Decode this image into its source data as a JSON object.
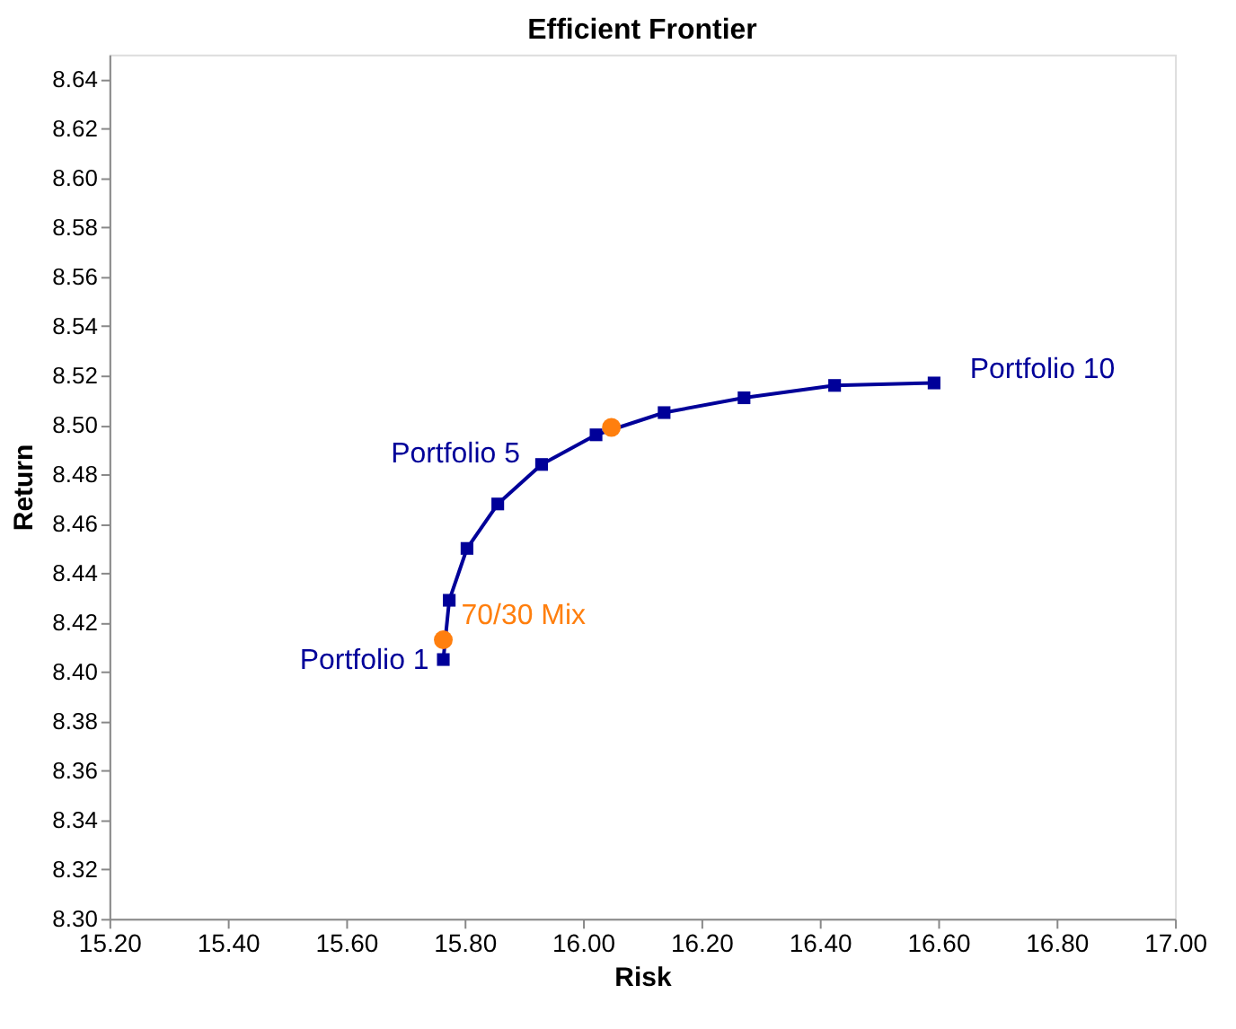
{
  "chart_data": {
    "type": "line",
    "title": "Efficient Frontier",
    "xlabel": "Risk",
    "ylabel": "Return",
    "xlim": [
      15.2,
      17.0
    ],
    "xticks": [
      {
        "value": 15.2,
        "label": "15.20"
      },
      {
        "value": 15.4,
        "label": "15.40"
      },
      {
        "value": 15.6,
        "label": "15.60"
      },
      {
        "value": 15.8,
        "label": "15.80"
      },
      {
        "value": 16.0,
        "label": "16.00"
      },
      {
        "value": 16.2,
        "label": "16.20"
      },
      {
        "value": 16.4,
        "label": "16.40"
      },
      {
        "value": 16.6,
        "label": "16.60"
      },
      {
        "value": 16.8,
        "label": "16.80"
      },
      {
        "value": 17.0,
        "label": "17.00"
      }
    ],
    "ylim": [
      8.3,
      8.65
    ],
    "yticks": [
      {
        "value": 8.3,
        "label": "8.30"
      },
      {
        "value": 8.32,
        "label": "8.32"
      },
      {
        "value": 8.34,
        "label": "8.34"
      },
      {
        "value": 8.36,
        "label": "8.36"
      },
      {
        "value": 8.38,
        "label": "8.38"
      },
      {
        "value": 8.4,
        "label": "8.40"
      },
      {
        "value": 8.42,
        "label": "8.42"
      },
      {
        "value": 8.44,
        "label": "8.44"
      },
      {
        "value": 8.46,
        "label": "8.46"
      },
      {
        "value": 8.48,
        "label": "8.48"
      },
      {
        "value": 8.5,
        "label": "8.50"
      },
      {
        "value": 8.52,
        "label": "8.52"
      },
      {
        "value": 8.54,
        "label": "8.54"
      },
      {
        "value": 8.56,
        "label": "8.56"
      },
      {
        "value": 8.58,
        "label": "8.58"
      },
      {
        "value": 8.6,
        "label": "8.60"
      },
      {
        "value": 8.62,
        "label": "8.62"
      },
      {
        "value": 8.64,
        "label": "8.64"
      }
    ],
    "grid": false,
    "legend": false,
    "series": [
      {
        "type": "line",
        "marker": "square",
        "line_style": "solid",
        "color": "#000099",
        "x": [
          15.764,
          15.774,
          15.804,
          15.856,
          15.93,
          16.022,
          16.137,
          16.272,
          16.425,
          16.593
        ],
        "values": [
          8.405,
          8.429,
          8.45,
          8.468,
          8.484,
          8.496,
          8.505,
          8.511,
          8.516,
          8.517
        ]
      },
      {
        "type": "scatter",
        "marker": "circle",
        "name": "70/30 Mix",
        "color": "#ff7f0e",
        "x": [
          15.764
        ],
        "values": [
          8.413
        ]
      },
      {
        "type": "scatter",
        "marker": "circle",
        "color": "#ff7f0e",
        "x": [
          16.048
        ],
        "values": [
          8.499
        ]
      }
    ],
    "annotations": [
      {
        "text": "Portfolio 1",
        "x": 15.764,
        "y": 8.405
      },
      {
        "text": "Portfolio 5",
        "x": 15.93,
        "y": 8.484
      },
      {
        "text": "Portfolio 10",
        "x": 16.593,
        "y": 8.517
      }
    ]
  }
}
